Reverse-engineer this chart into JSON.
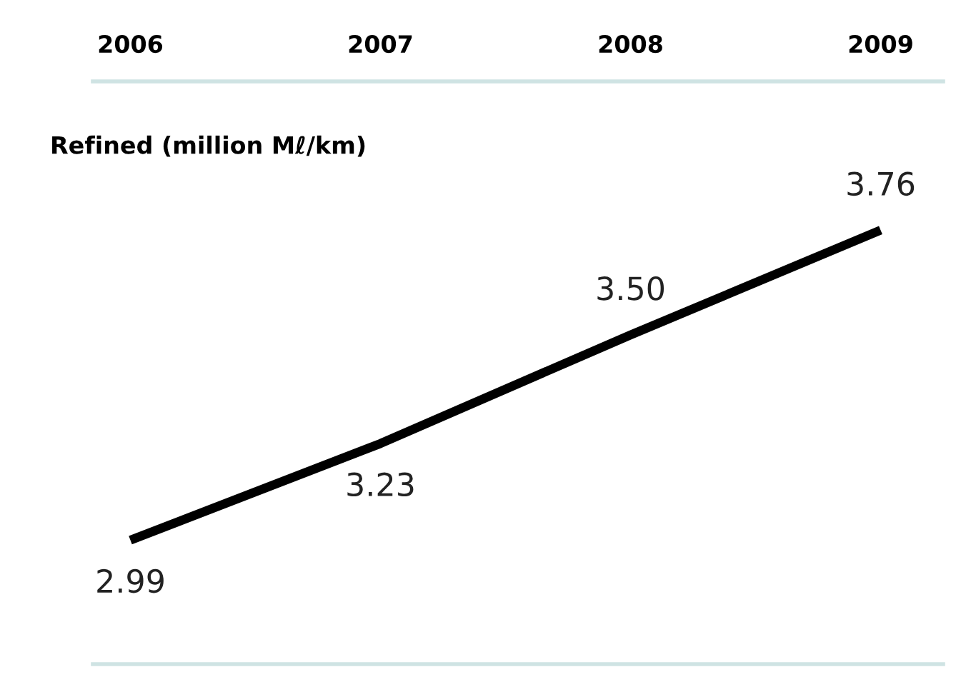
{
  "chart_data": {
    "type": "line",
    "title": "Refined (million Mℓ/km)",
    "categories": [
      "2006",
      "2007",
      "2008",
      "2009"
    ],
    "series": [
      {
        "color": "#000000",
        "values": [
          2.99,
          3.23,
          3.5,
          3.76
        ],
        "value_labels": [
          "2.99",
          "3.23",
          "3.50",
          "3.76"
        ]
      }
    ],
    "grid": false,
    "legend": false,
    "marker": "none",
    "line_style": "solid"
  }
}
